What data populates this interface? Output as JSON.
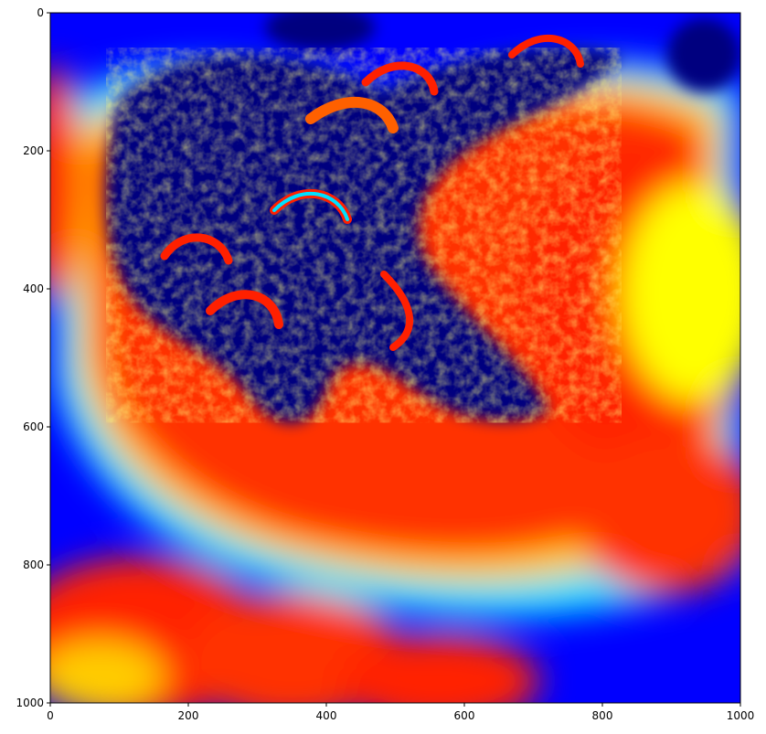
{
  "figure": {
    "background_color": "#ffffff",
    "axes_frame_color": "#000000"
  },
  "image_plot": {
    "type": "heatmap",
    "description_colormap": "jet",
    "colors": {
      "deep_blue": "#00007f",
      "blue": "#0000ff",
      "cyan": "#00ffff",
      "yellow": "#ffff00",
      "red": "#ff0000",
      "dark_red": "#7f0000"
    },
    "xlim": [
      0,
      1000
    ],
    "ylim": [
      1000,
      0
    ],
    "x_ticks": [
      {
        "value": 0,
        "label": "0"
      },
      {
        "value": 200,
        "label": "200"
      },
      {
        "value": 400,
        "label": "400"
      },
      {
        "value": 600,
        "label": "600"
      },
      {
        "value": 800,
        "label": "800"
      },
      {
        "value": 1000,
        "label": "1000"
      }
    ],
    "y_ticks": [
      {
        "value": 0,
        "label": "0"
      },
      {
        "value": 200,
        "label": "200"
      },
      {
        "value": 400,
        "label": "400"
      },
      {
        "value": 600,
        "label": "600"
      },
      {
        "value": 800,
        "label": "800"
      },
      {
        "value": 1000,
        "label": "1000"
      }
    ]
  }
}
